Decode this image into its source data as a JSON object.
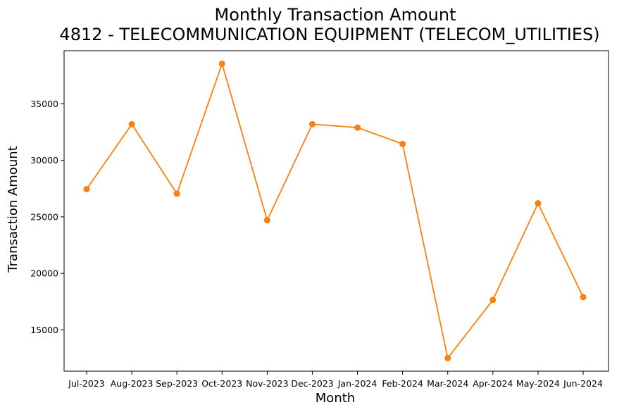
{
  "chart_data": {
    "type": "line",
    "title": "Monthly Transaction Amount",
    "subtitle": "4812 - TELECOMMUNICATION EQUIPMENT (TELECOM_UTILITIES)",
    "xlabel": "Month",
    "ylabel": "Transaction Amount",
    "categories": [
      "Jul-2023",
      "Aug-2023",
      "Sep-2023",
      "Oct-2023",
      "Nov-2023",
      "Dec-2023",
      "Jan-2024",
      "Feb-2024",
      "Mar-2024",
      "Apr-2024",
      "May-2024",
      "Jun-2024"
    ],
    "series": [
      {
        "name": "Transaction Amount",
        "color": "#ff7f0e",
        "values": [
          27450,
          33200,
          27050,
          38550,
          24700,
          33200,
          32900,
          31450,
          12500,
          17650,
          26200,
          17900
        ]
      }
    ],
    "ylim": [
      11350,
      39700
    ],
    "yticks": [
      15000,
      20000,
      25000,
      30000,
      35000
    ],
    "grid": false,
    "legend": "none"
  }
}
